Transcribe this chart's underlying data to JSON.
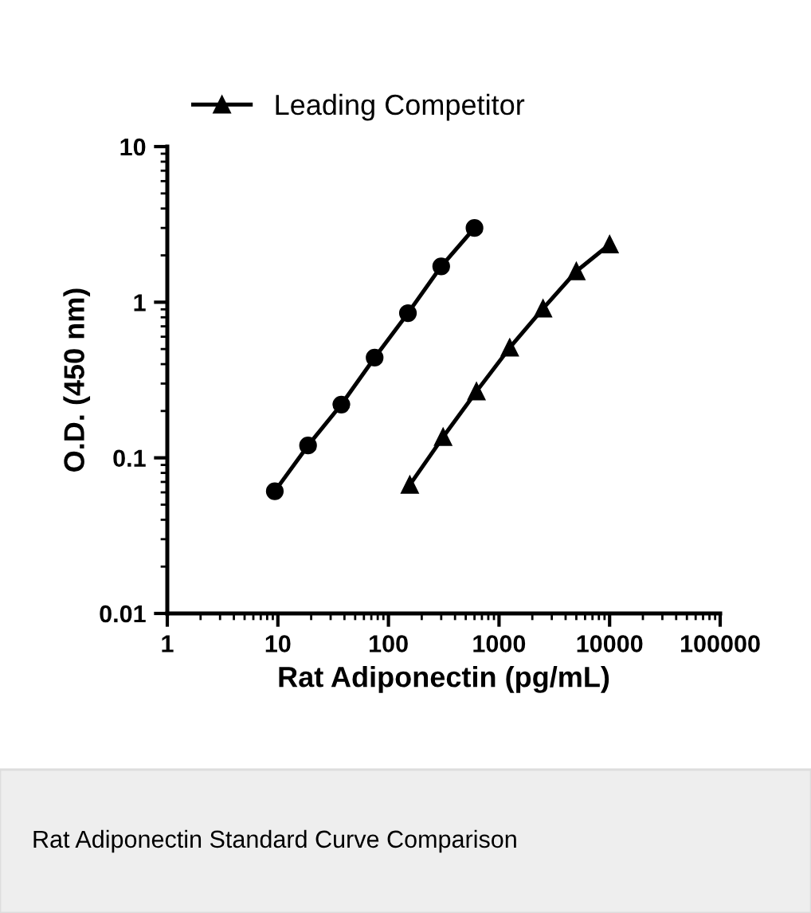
{
  "chart_data": {
    "type": "line",
    "title": "Rat Adiponectin Standard Curve Comparison",
    "xlabel": "Rat Adiponectin (pg/mL)",
    "ylabel": "O.D. (450 nm)",
    "log": "xy",
    "xlim": [
      1,
      100000
    ],
    "ylim": [
      0.01,
      10
    ],
    "xticks": [
      1,
      10,
      100,
      1000,
      10000,
      100000
    ],
    "yticks": [
      0.01,
      0.1,
      1,
      10
    ],
    "grid": false,
    "legend": "top",
    "series": [
      {
        "color": "#000000",
        "marker": "circle",
        "x": [
          9.38,
          18.75,
          37.5,
          75,
          150,
          300,
          600
        ],
        "values": [
          0.061,
          0.12,
          0.22,
          0.44,
          0.85,
          1.7,
          3.0
        ]
      },
      {
        "name": "Leading Competitor",
        "color": "#000000",
        "marker": "triangle",
        "x": [
          156,
          312,
          625,
          1250,
          2500,
          5000,
          10000
        ],
        "values": [
          0.067,
          0.136,
          0.267,
          0.51,
          0.91,
          1.58,
          2.35
        ]
      }
    ]
  }
}
